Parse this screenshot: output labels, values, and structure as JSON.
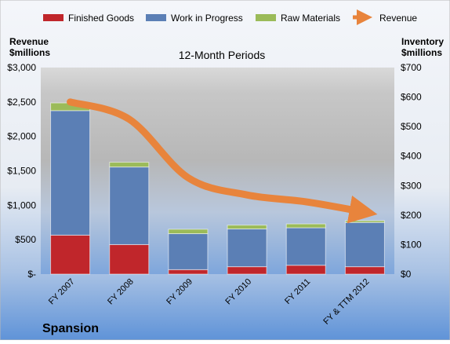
{
  "company": "Spansion",
  "chart_data": {
    "type": "bar",
    "subtype": "stacked-bar-with-line",
    "title": "12-Month Periods",
    "categories": [
      "FY 2007",
      "FY 2008",
      "FY 2009",
      "FY 2010",
      "FY 2011",
      "FY & TTM 2012"
    ],
    "left_axis": {
      "label_line1": "Revenue",
      "label_line2": "$millions",
      "range": [
        0,
        3000
      ],
      "ticks": [
        0,
        500,
        1000,
        1500,
        2000,
        2500,
        3000
      ],
      "tick_labels": [
        "$-",
        "$500",
        "$1,000",
        "$1,500",
        "$2,000",
        "$2,500",
        "$3,000"
      ]
    },
    "right_axis": {
      "label_line1": "Inventory",
      "label_line2": "$millions",
      "range": [
        0,
        700
      ],
      "ticks": [
        0,
        100,
        200,
        300,
        400,
        500,
        600,
        700
      ],
      "tick_labels": [
        "$0",
        "$100",
        "$200",
        "$300",
        "$400",
        "$500",
        "$600",
        "$700"
      ]
    },
    "series": [
      {
        "name": "Finished Goods",
        "kind": "bar",
        "axis": "right",
        "color": "#c0262b",
        "values": [
          132,
          100,
          15,
          25,
          30,
          25
        ]
      },
      {
        "name": "Work in Progress",
        "kind": "bar",
        "axis": "right",
        "color": "#5b7fb5",
        "values": [
          422,
          263,
          122,
          128,
          127,
          150
        ]
      },
      {
        "name": "Raw Materials",
        "kind": "bar",
        "axis": "right",
        "color": "#9bbb59",
        "values": [
          26,
          16,
          15,
          13,
          13,
          6
        ]
      },
      {
        "name": "Revenue",
        "kind": "line",
        "axis": "left",
        "color": "#e8843c",
        "values": [
          2500,
          2250,
          1400,
          1150,
          1050,
          900
        ]
      }
    ],
    "legend_position": "top",
    "grid": false
  }
}
